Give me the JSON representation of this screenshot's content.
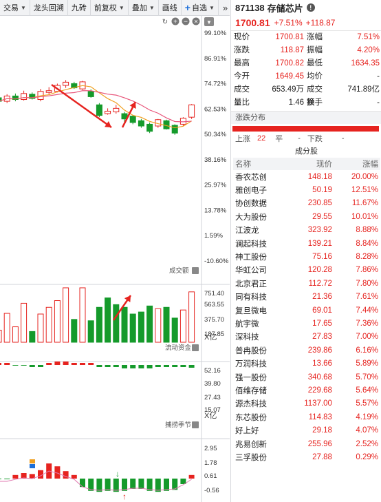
{
  "toolbar": {
    "items": [
      {
        "label": "交易",
        "caret": true
      },
      {
        "label": "龙头回溯",
        "caret": false
      },
      {
        "label": "九砖",
        "caret": false
      },
      {
        "label": "前复权",
        "caret": true
      },
      {
        "label": "叠加",
        "caret": true
      },
      {
        "label": "画线",
        "caret": false
      }
    ],
    "add_label": "自选",
    "more": "»"
  },
  "kline": {
    "price_ticks": [
      "99.10%",
      "86.91%",
      "74.72%",
      "62.53%",
      "50.34%",
      "38.16%",
      "25.97%",
      "13.78%",
      "1.59%",
      "-10.60%"
    ],
    "candles": [
      {
        "o": 3,
        "c": 2,
        "h": 3.5,
        "l": 1
      },
      {
        "o": 2,
        "c": 3.5,
        "h": 4,
        "l": 1.5
      },
      {
        "o": 3.5,
        "c": 2.5,
        "h": 4.2,
        "l": 2
      },
      {
        "o": 2.5,
        "c": 4.2,
        "h": 5,
        "l": 2.2
      },
      {
        "o": 4,
        "c": 2.8,
        "h": 4.5,
        "l": 2.5
      },
      {
        "o": 2.5,
        "c": 4.8,
        "h": 5.5,
        "l": 2
      },
      {
        "o": 4.5,
        "c": 5,
        "h": 6,
        "l": 4
      },
      {
        "o": 4.8,
        "c": 6.5,
        "h": 7,
        "l": 4.5
      },
      {
        "o": 6.5,
        "c": 7.4,
        "h": 8,
        "l": 5.8
      },
      {
        "o": 7,
        "c": 5.8,
        "h": 7.5,
        "l": 5.5
      },
      {
        "o": 5.5,
        "c": 7.5,
        "h": 7.8,
        "l": 5.2
      },
      {
        "o": 4.8,
        "c": 3.3,
        "h": 5.4,
        "l": 3
      },
      {
        "o": 1,
        "c": -2,
        "h": 1.5,
        "l": -2.5
      },
      {
        "o": -1.5,
        "c": -0.8,
        "h": 0,
        "l": -1.8
      },
      {
        "o": -1,
        "c": 0,
        "h": 1,
        "l": -1.5
      },
      {
        "o": -1.5,
        "c": -3,
        "h": -1,
        "l": -4
      },
      {
        "o": -2.2,
        "c": -4,
        "h": -2,
        "l": -4.5
      },
      {
        "o": -3.5,
        "c": -5,
        "h": -3,
        "l": -5.5
      },
      {
        "o": -4.5,
        "c": -6.5,
        "h": -4,
        "l": -7
      },
      {
        "o": -5,
        "c": -3.2,
        "h": -3,
        "l": -5.5
      },
      {
        "o": -3.5,
        "c": -5.8,
        "h": -3.2,
        "l": -6
      },
      {
        "o": -4.8,
        "c": -7,
        "h": -4.5,
        "l": -7.5
      },
      {
        "o": -4.5,
        "c": -2.8,
        "h": -2.5,
        "l": -5
      },
      {
        "o": -2.5,
        "c": 1,
        "h": 1.2,
        "l": -3
      }
    ]
  },
  "volume": {
    "label": "成交额",
    "ticks": [
      "751.40",
      "563.55",
      "375.70",
      "187.85"
    ],
    "unit": "X亿",
    "bars": [
      {
        "v": 180,
        "up": true
      },
      {
        "v": 430,
        "up": true
      },
      {
        "v": 230,
        "up": true
      },
      {
        "v": 580,
        "up": true
      },
      {
        "v": 160,
        "up": false
      },
      {
        "v": 420,
        "up": true
      },
      {
        "v": 520,
        "up": true
      },
      {
        "v": 620,
        "up": true
      },
      {
        "v": 810,
        "up": true
      },
      {
        "v": 340,
        "up": false
      },
      {
        "v": 810,
        "up": true
      },
      {
        "v": 320,
        "up": false
      },
      {
        "v": 520,
        "up": false
      },
      {
        "v": 660,
        "up": false
      },
      {
        "v": 560,
        "up": false
      },
      {
        "v": 520,
        "up": false
      },
      {
        "v": 420,
        "up": false
      },
      {
        "v": 450,
        "up": false
      },
      {
        "v": 540,
        "up": false
      },
      {
        "v": 500,
        "up": true
      },
      {
        "v": 520,
        "up": false
      },
      {
        "v": 360,
        "up": false
      },
      {
        "v": 480,
        "up": true
      },
      {
        "v": 750,
        "up": true
      }
    ]
  },
  "flow": {
    "label": "流动资金",
    "ticks": [
      "52.16",
      "39.80",
      "27.43",
      "15.07"
    ],
    "unit": "X亿"
  },
  "seasonal": {
    "label": "捕捞季节",
    "ticks": [
      "2.95",
      "1.78",
      "0.61",
      "-0.56"
    ]
  },
  "stock": {
    "code": "871138",
    "name": "存储芯片",
    "price": "1700.81",
    "pct": "+7.51%",
    "chg": "+118.87"
  },
  "quote": [
    [
      "现价",
      "1700.81",
      "涨幅",
      "7.51%"
    ],
    [
      "涨跌",
      "118.87",
      "振幅",
      "4.20%"
    ],
    [
      "最高",
      "1700.82",
      "最低",
      "1634.35"
    ],
    [
      "今开",
      "1649.45",
      "均价",
      "-"
    ],
    [
      "成交量",
      "653.49万",
      "成交额",
      "741.89亿"
    ],
    [
      "量比",
      "1.46",
      "换手",
      "-"
    ]
  ],
  "distribution": {
    "title": "涨跌分布",
    "up_label": "上涨",
    "up_count": "22",
    "flat_label": "平",
    "flat_count": "-",
    "down_label": "下跌",
    "down_count": "-"
  },
  "components": {
    "title": "成分股",
    "headers": [
      "名称",
      "现价",
      "涨幅"
    ],
    "rows": [
      [
        "香农芯创",
        "148.18",
        "20.00%"
      ],
      [
        "雅创电子",
        "50.19",
        "12.51%"
      ],
      [
        "协创数据",
        "230.85",
        "11.67%"
      ],
      [
        "大为股份",
        "29.55",
        "10.01%"
      ],
      [
        "江波龙",
        "323.92",
        "8.88%"
      ],
      [
        "澜起科技",
        "139.21",
        "8.84%"
      ],
      [
        "神工股份",
        "75.16",
        "8.28%"
      ],
      [
        "华虹公司",
        "120.28",
        "7.86%"
      ],
      [
        "北京君正",
        "112.72",
        "7.80%"
      ],
      [
        "同有科技",
        "21.36",
        "7.61%"
      ],
      [
        "复旦微电",
        "69.01",
        "7.44%"
      ],
      [
        "航宇微",
        "17.65",
        "7.36%"
      ],
      [
        "深科技",
        "27.83",
        "7.00%"
      ],
      [
        "普冉股份",
        "239.86",
        "6.16%"
      ],
      [
        "万润科技",
        "13.66",
        "5.89%"
      ],
      [
        "强一股份",
        "340.68",
        "5.70%"
      ],
      [
        "佰维存储",
        "229.68",
        "5.64%"
      ],
      [
        "源杰科技",
        "1137.00",
        "5.57%"
      ],
      [
        "东芯股份",
        "114.83",
        "4.19%"
      ],
      [
        "好上好",
        "29.18",
        "4.07%"
      ],
      [
        "兆易创新",
        "255.96",
        "2.52%"
      ],
      [
        "三孚股份",
        "27.88",
        "0.29%"
      ]
    ]
  },
  "colors": {
    "up": "#e6231f",
    "down": "#159a2b",
    "ma_orange": "#f0a020",
    "ma_pink": "#e8557a",
    "arrow": "#e6231f"
  }
}
